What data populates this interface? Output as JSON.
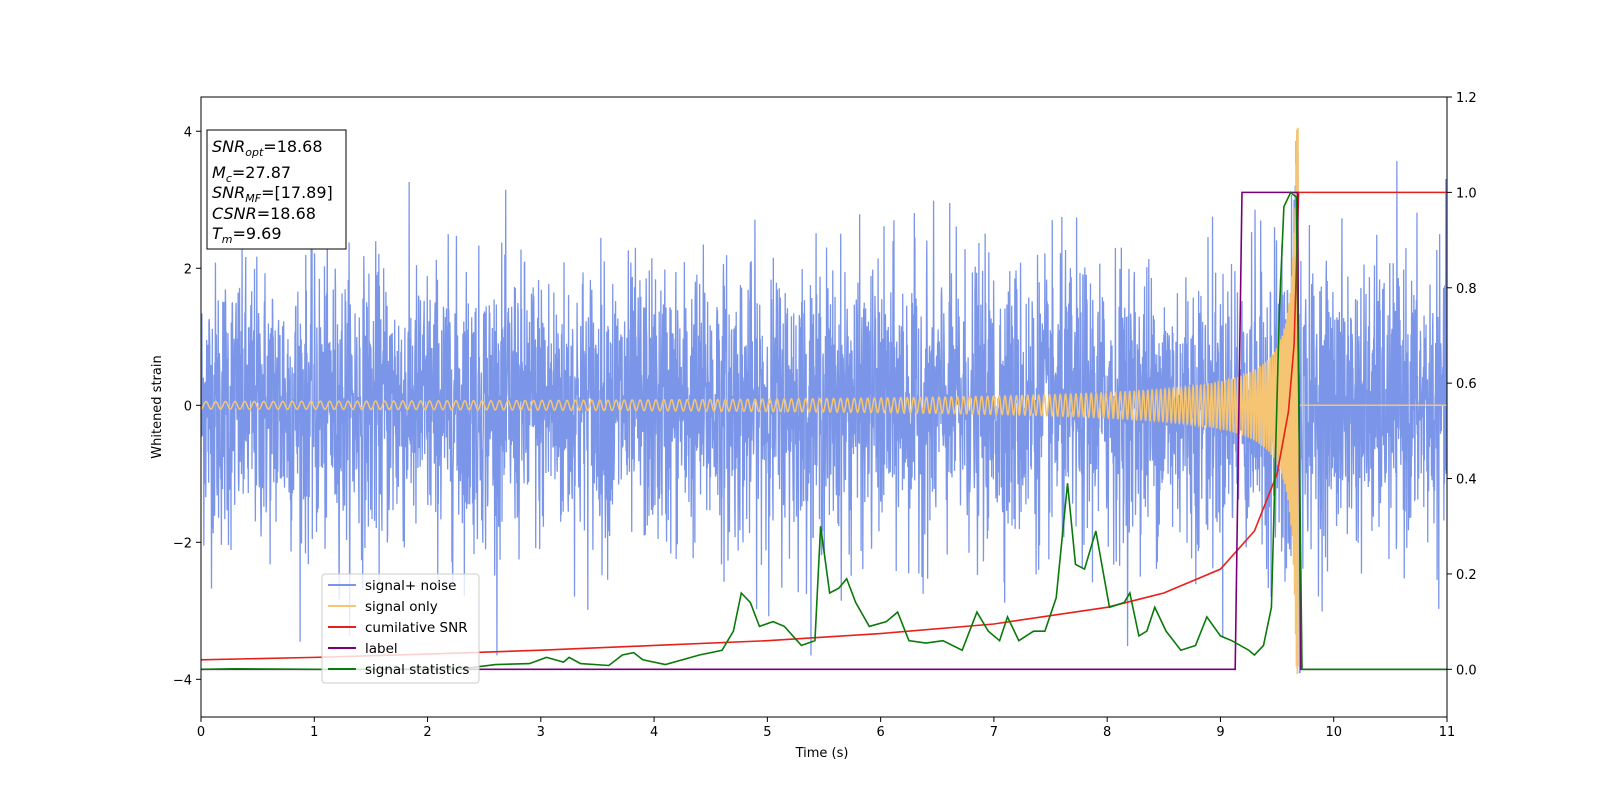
{
  "chart_data": {
    "type": "line",
    "xlabel": "Time (s)",
    "ylabel": "Whitened strain",
    "xlim": [
      0,
      11
    ],
    "ylim_left": [
      -4.55,
      4.5
    ],
    "ylim_right": [
      -0.1,
      1.2
    ],
    "x_ticks": [
      "0",
      "1",
      "2",
      "3",
      "4",
      "5",
      "6",
      "7",
      "8",
      "9",
      "10",
      "11"
    ],
    "y_left_ticks": [
      "−4",
      "−2",
      "0",
      "2",
      "4"
    ],
    "y_right_ticks": [
      "0.0",
      "0.2",
      "0.4",
      "0.6",
      "0.8",
      "1.0",
      "1.2"
    ],
    "stats_box": {
      "snr_opt": "=18.68",
      "mc": "=27.87",
      "snr_mf": "=[17.89]",
      "csnr": "=18.68",
      "tm": "=9.69"
    },
    "legend": {
      "position": "lower-left",
      "entries": [
        "signal+ noise",
        "signal only",
        "cumilative SNR",
        "label",
        "signal statistics"
      ]
    },
    "series": [
      {
        "name": "signal+ noise",
        "axis": "left",
        "color": "#7b96e8",
        "noise_std": 1.0,
        "peak_max": 3.85,
        "peak_min": -3.9
      },
      {
        "name": "signal only",
        "axis": "left",
        "color": "#f5c573",
        "merger_time": 9.69,
        "peak_amplitude": 4.1,
        "early_amplitude": 0.05
      },
      {
        "name": "cumilative SNR",
        "axis": "right",
        "color": "#e8201a",
        "points": [
          [
            0,
            0.02
          ],
          [
            1,
            0.025
          ],
          [
            2,
            0.032
          ],
          [
            3,
            0.04
          ],
          [
            4,
            0.05
          ],
          [
            5,
            0.06
          ],
          [
            6,
            0.075
          ],
          [
            7,
            0.095
          ],
          [
            8,
            0.13
          ],
          [
            8.5,
            0.16
          ],
          [
            9,
            0.21
          ],
          [
            9.3,
            0.29
          ],
          [
            9.5,
            0.41
          ],
          [
            9.6,
            0.54
          ],
          [
            9.65,
            0.68
          ],
          [
            9.69,
            1.0
          ],
          [
            11,
            1.0
          ]
        ]
      },
      {
        "name": "label",
        "axis": "right",
        "color": "#7a007a",
        "points": [
          [
            0,
            0.0
          ],
          [
            9.13,
            0.0
          ],
          [
            9.19,
            1.0
          ],
          [
            9.68,
            1.0
          ],
          [
            9.71,
            0.0
          ],
          [
            11,
            0.0
          ]
        ]
      },
      {
        "name": "signal statistics",
        "axis": "right",
        "color": "#0a7a0a",
        "points": [
          [
            0,
            0.0
          ],
          [
            0.3,
            0.001
          ],
          [
            1,
            0.0
          ],
          [
            2,
            0.0
          ],
          [
            2.3,
            0.001
          ],
          [
            2.6,
            0.01
          ],
          [
            2.9,
            0.012
          ],
          [
            3.05,
            0.025
          ],
          [
            3.2,
            0.015
          ],
          [
            3.25,
            0.025
          ],
          [
            3.35,
            0.012
          ],
          [
            3.6,
            0.008
          ],
          [
            3.72,
            0.03
          ],
          [
            3.82,
            0.035
          ],
          [
            3.9,
            0.02
          ],
          [
            4.1,
            0.01
          ],
          [
            4.4,
            0.03
          ],
          [
            4.6,
            0.04
          ],
          [
            4.7,
            0.08
          ],
          [
            4.77,
            0.16
          ],
          [
            4.85,
            0.14
          ],
          [
            4.93,
            0.09
          ],
          [
            5.05,
            0.1
          ],
          [
            5.15,
            0.09
          ],
          [
            5.3,
            0.05
          ],
          [
            5.42,
            0.06
          ],
          [
            5.47,
            0.3
          ],
          [
            5.55,
            0.16
          ],
          [
            5.63,
            0.17
          ],
          [
            5.7,
            0.19
          ],
          [
            5.78,
            0.14
          ],
          [
            5.9,
            0.09
          ],
          [
            6.05,
            0.1
          ],
          [
            6.15,
            0.12
          ],
          [
            6.25,
            0.06
          ],
          [
            6.4,
            0.055
          ],
          [
            6.55,
            0.06
          ],
          [
            6.72,
            0.04
          ],
          [
            6.85,
            0.12
          ],
          [
            6.95,
            0.08
          ],
          [
            7.05,
            0.06
          ],
          [
            7.12,
            0.11
          ],
          [
            7.22,
            0.06
          ],
          [
            7.35,
            0.08
          ],
          [
            7.45,
            0.08
          ],
          [
            7.55,
            0.15
          ],
          [
            7.65,
            0.39
          ],
          [
            7.72,
            0.22
          ],
          [
            7.8,
            0.21
          ],
          [
            7.9,
            0.29
          ],
          [
            8.02,
            0.13
          ],
          [
            8.15,
            0.14
          ],
          [
            8.2,
            0.16
          ],
          [
            8.28,
            0.07
          ],
          [
            8.35,
            0.08
          ],
          [
            8.42,
            0.13
          ],
          [
            8.52,
            0.08
          ],
          [
            8.65,
            0.04
          ],
          [
            8.78,
            0.05
          ],
          [
            8.88,
            0.11
          ],
          [
            9.0,
            0.07
          ],
          [
            9.1,
            0.06
          ],
          [
            9.25,
            0.04
          ],
          [
            9.3,
            0.03
          ],
          [
            9.38,
            0.05
          ],
          [
            9.45,
            0.13
          ],
          [
            9.52,
            0.75
          ],
          [
            9.56,
            0.97
          ],
          [
            9.62,
            1.0
          ],
          [
            9.67,
            0.99
          ],
          [
            9.72,
            0.0
          ],
          [
            11,
            0.0
          ]
        ]
      }
    ]
  }
}
